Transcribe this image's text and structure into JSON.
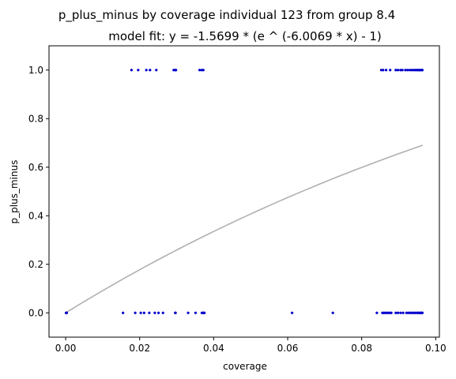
{
  "chart_data": {
    "type": "scatter",
    "title": "p_plus_minus by coverage individual 123 from group 8.4",
    "subtitle": "model fit: y = -1.5699 * (e ^ (-6.0069 * x) - 1)",
    "xlabel": "coverage",
    "ylabel": "p_plus_minus",
    "xlim": [
      -0.0045,
      0.101
    ],
    "ylim": [
      -0.1,
      1.1
    ],
    "xticks": [
      0.0,
      0.02,
      0.04,
      0.06,
      0.08,
      0.1
    ],
    "xtick_labels": [
      "0.00",
      "0.02",
      "0.04",
      "0.06",
      "0.08",
      "0.10"
    ],
    "yticks": [
      0.0,
      0.2,
      0.4,
      0.6,
      0.8,
      1.0
    ],
    "ytick_labels": [
      "0.0",
      "0.2",
      "0.4",
      "0.6",
      "0.8",
      "1.0"
    ],
    "grid": false,
    "point_color": "#0000cc",
    "fit_color": "#b0b0b0",
    "series": [
      {
        "y": 1,
        "x": [
          0.0178,
          0.0196,
          0.0218,
          0.0228,
          0.0245,
          0.0292,
          0.0296,
          0.0298,
          0.0362,
          0.0368,
          0.0372,
          0.0853,
          0.0858,
          0.0866,
          0.0877,
          0.0892,
          0.0898,
          0.0905,
          0.091,
          0.0918,
          0.0924,
          0.093,
          0.0935,
          0.094,
          0.0944,
          0.0948,
          0.0951,
          0.0954,
          0.0957,
          0.096,
          0.0962,
          0.0964
        ]
      },
      {
        "y": 0,
        "x": [
          0.0001,
          0.0002,
          0.0003,
          0.0155,
          0.0188,
          0.0203,
          0.0212,
          0.0226,
          0.0241,
          0.0251,
          0.0263,
          0.0296,
          0.0297,
          0.0331,
          0.0351,
          0.0368,
          0.0372,
          0.0374,
          0.0375,
          0.0612,
          0.0722,
          0.0841,
          0.0856,
          0.086,
          0.0864,
          0.0868,
          0.0872,
          0.0876,
          0.088,
          0.0892,
          0.0898,
          0.0905,
          0.0912,
          0.0921,
          0.0926,
          0.0931,
          0.0935,
          0.0939,
          0.0943,
          0.0947,
          0.0951,
          0.0954,
          0.0957,
          0.096,
          0.0962,
          0.0964
        ]
      }
    ],
    "fit": {
      "a": -1.5699,
      "b": -6.0069,
      "x_range": [
        0.0,
        0.0965
      ]
    }
  }
}
